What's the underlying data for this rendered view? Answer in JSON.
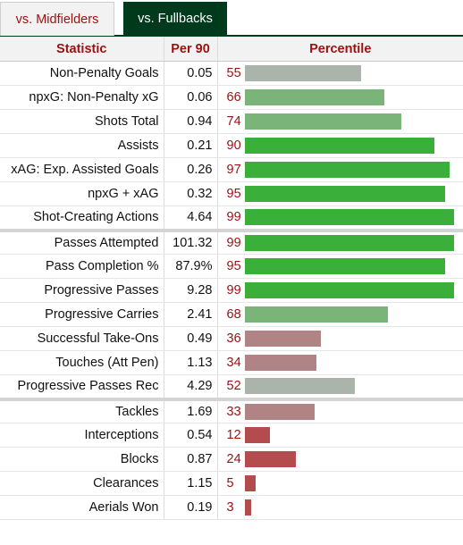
{
  "tabs": [
    {
      "label": "vs. Midfielders",
      "active": false
    },
    {
      "label": "vs. Fullbacks",
      "active": true
    }
  ],
  "headers": {
    "statistic": "Statistic",
    "per90": "Per 90",
    "percentile": "Percentile"
  },
  "colors": {
    "elite": "#3aaf3a",
    "good": "#7bb478",
    "average": "#aab4aa",
    "below": "#b08484",
    "poor": "#b34d4d",
    "header_text": "#9a1111",
    "active_tab": "#003a1c"
  },
  "rows": [
    {
      "stat": "Non-Penalty Goals",
      "per90": "0.05",
      "percentile": 55,
      "color": "#aab4aa"
    },
    {
      "stat": "npxG: Non-Penalty xG",
      "per90": "0.06",
      "percentile": 66,
      "color": "#7bb478"
    },
    {
      "stat": "Shots Total",
      "per90": "0.94",
      "percentile": 74,
      "color": "#7bb478"
    },
    {
      "stat": "Assists",
      "per90": "0.21",
      "percentile": 90,
      "color": "#3aaf3a"
    },
    {
      "stat": "xAG: Exp. Assisted Goals",
      "per90": "0.26",
      "percentile": 97,
      "color": "#3aaf3a"
    },
    {
      "stat": "npxG + xAG",
      "per90": "0.32",
      "percentile": 95,
      "color": "#3aaf3a"
    },
    {
      "stat": "Shot-Creating Actions",
      "per90": "4.64",
      "percentile": 99,
      "color": "#3aaf3a"
    },
    {
      "stat": "Passes Attempted",
      "per90": "101.32",
      "percentile": 99,
      "color": "#3aaf3a",
      "group_start": true
    },
    {
      "stat": "Pass Completion %",
      "per90": "87.9%",
      "percentile": 95,
      "color": "#3aaf3a"
    },
    {
      "stat": "Progressive Passes",
      "per90": "9.28",
      "percentile": 99,
      "color": "#3aaf3a"
    },
    {
      "stat": "Progressive Carries",
      "per90": "2.41",
      "percentile": 68,
      "color": "#7bb478"
    },
    {
      "stat": "Successful Take-Ons",
      "per90": "0.49",
      "percentile": 36,
      "color": "#b08484"
    },
    {
      "stat": "Touches (Att Pen)",
      "per90": "1.13",
      "percentile": 34,
      "color": "#b08484"
    },
    {
      "stat": "Progressive Passes Rec",
      "per90": "4.29",
      "percentile": 52,
      "color": "#aab4aa"
    },
    {
      "stat": "Tackles",
      "per90": "1.69",
      "percentile": 33,
      "color": "#b08484",
      "group_start": true
    },
    {
      "stat": "Interceptions",
      "per90": "0.54",
      "percentile": 12,
      "color": "#b34d4d"
    },
    {
      "stat": "Blocks",
      "per90": "0.87",
      "percentile": 24,
      "color": "#b34d4d"
    },
    {
      "stat": "Clearances",
      "per90": "1.15",
      "percentile": 5,
      "color": "#b34d4d"
    },
    {
      "stat": "Aerials Won",
      "per90": "0.19",
      "percentile": 3,
      "color": "#b34d4d"
    }
  ]
}
